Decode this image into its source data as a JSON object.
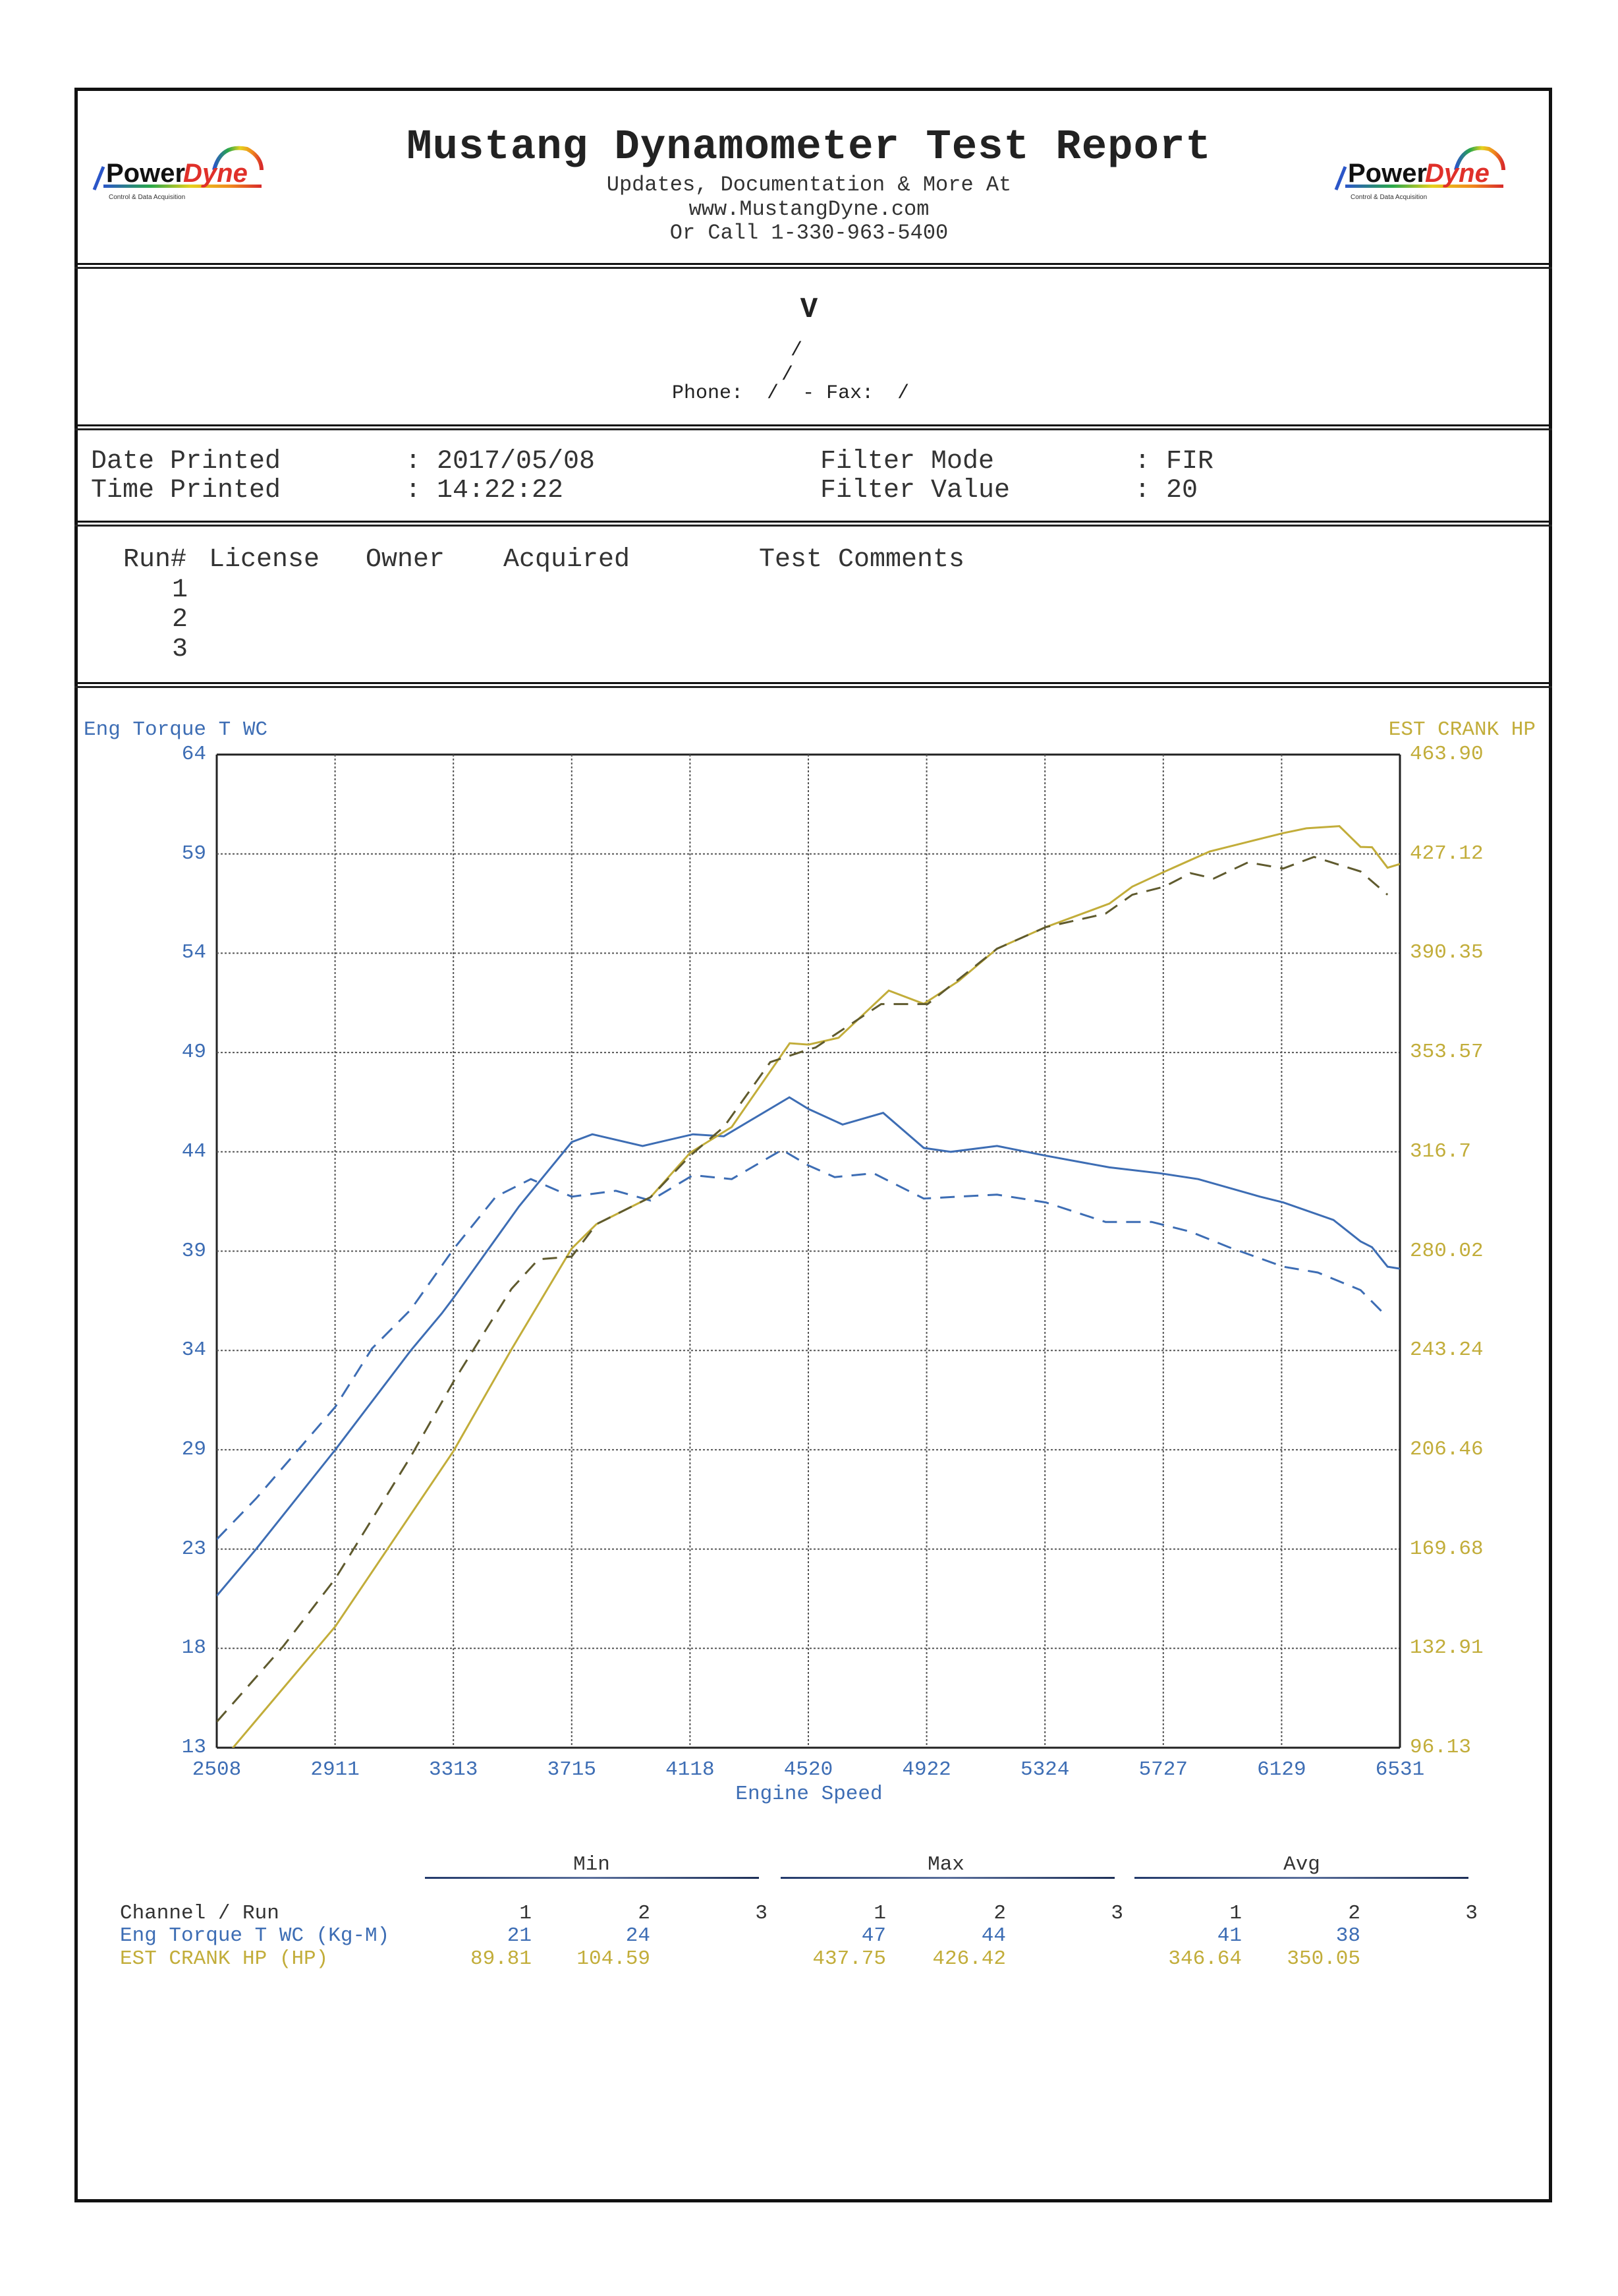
{
  "header": {
    "title": "Mustang Dynamometer Test Report",
    "lines": [
      "Updates, Documentation & More At",
      "www.MustangDyne.com",
      "Or Call 1-330-963-5400"
    ],
    "logo": {
      "brand_a": "Power",
      "brand_b": "Dyne",
      "tagline": "Control & Data Acquisition"
    }
  },
  "customer": {
    "name": "V",
    "line1": "/",
    "line2": "/",
    "phone_label": "Phone:",
    "phone": "/",
    "fax_label": "- Fax:",
    "fax": "/"
  },
  "info": {
    "date_label": "Date Printed",
    "date_value": ": 2017/05/08",
    "time_label": "Time Printed",
    "time_value": ": 14:22:22",
    "filter_mode_label": "Filter Mode",
    "filter_mode_value": ": FIR",
    "filter_value_label": "Filter Value",
    "filter_value_value": ": 20"
  },
  "runs": {
    "headers": [
      "Run#",
      "License",
      "Owner",
      "Acquired",
      "Test Comments"
    ],
    "rows": [
      "1",
      "2",
      "3"
    ]
  },
  "colors": {
    "torque": "#3d6db4",
    "hp": "#c2ad3a",
    "hp_dash": "#5f5a2e",
    "grid": "#444444"
  },
  "chart_data": {
    "type": "line",
    "xlabel": "Engine Speed",
    "ylabel": "Eng Torque T WC",
    "y2label": "EST CRANK HP",
    "xlim": [
      2508,
      6531
    ],
    "ylim": [
      13,
      64
    ],
    "y2lim": [
      96.13,
      463.9
    ],
    "grid": true,
    "xticks": [
      "2508",
      "2911",
      "3313",
      "3715",
      "4118",
      "4520",
      "4922",
      "5324",
      "5727",
      "6129",
      "6531"
    ],
    "yticks": [
      "64",
      "59",
      "54",
      "49",
      "44",
      "39",
      "34",
      "29",
      "23",
      "18",
      "13"
    ],
    "y2ticks": [
      "463.90",
      "427.12",
      "390.35",
      "353.57",
      "316.7",
      "280.02",
      "243.24",
      "206.46",
      "169.68",
      "132.91",
      "96.13"
    ],
    "series": [
      {
        "name": "Eng Torque T WC Run 1",
        "axis": "left",
        "style": "solid",
        "color": "#3d6db4",
        "x": [
          2508,
          2642,
          2911,
          3168,
          3273,
          3313,
          3536,
          3715,
          3785,
          3956,
          4127,
          4232,
          4455,
          4520,
          4636,
          4774,
          4912,
          5004,
          5161,
          5327,
          5543,
          5714,
          5845,
          6055,
          6134,
          6305,
          6397,
          6436,
          6489,
          6531
        ],
        "y": [
          20.8,
          23.2,
          28.3,
          33.4,
          35.3,
          36.1,
          40.8,
          44.1,
          44.5,
          43.9,
          44.5,
          44.4,
          46.4,
          45.8,
          45.0,
          45.6,
          43.8,
          43.6,
          43.9,
          43.4,
          42.8,
          42.5,
          42.2,
          41.3,
          41.0,
          40.1,
          39.0,
          38.7,
          37.7,
          37.6
        ]
      },
      {
        "name": "Eng Torque T WC Run 2",
        "axis": "left",
        "style": "dashed",
        "color": "#3d6db4",
        "x": [
          2508,
          2642,
          2911,
          3036,
          3168,
          3313,
          3457,
          3576,
          3715,
          3865,
          3983,
          4127,
          4259,
          4430,
          4520,
          4609,
          4741,
          4912,
          5030,
          5161,
          5327,
          5530,
          5687,
          5819,
          5950,
          6134,
          6252,
          6397,
          6476
        ],
        "y": [
          23.7,
          25.8,
          30.5,
          33.5,
          35.5,
          38.6,
          41.3,
          42.2,
          41.3,
          41.6,
          41.1,
          42.4,
          42.2,
          43.7,
          42.9,
          42.3,
          42.5,
          41.2,
          41.3,
          41.4,
          41.0,
          40.0,
          40.0,
          39.5,
          38.7,
          37.7,
          37.4,
          36.5,
          35.3
        ]
      },
      {
        "name": "EST CRANK HP Run 1",
        "axis": "right",
        "style": "solid",
        "color": "#c2ad3a",
        "x": [
          2508,
          2563,
          2911,
          3313,
          3510,
          3715,
          3799,
          3983,
          4118,
          4259,
          4456,
          4520,
          4622,
          4793,
          4912,
          5030,
          5161,
          5327,
          5543,
          5621,
          5730,
          5884,
          6015,
          6134,
          6213,
          6325,
          6397,
          6436,
          6489,
          6531
        ],
        "y": [
          89.81,
          96.1,
          141,
          206,
          243.6,
          281,
          290,
          300,
          316.5,
          326,
          357,
          356.5,
          359,
          376.5,
          371.6,
          380,
          392,
          400,
          408.7,
          415,
          420.5,
          428,
          431.6,
          434.8,
          436.6,
          437.4,
          429.7,
          429.6,
          422,
          423.4
        ]
      },
      {
        "name": "EST CRANK HP Run 2",
        "axis": "right",
        "style": "dashed",
        "color": "#5f5a2e",
        "x": [
          2508,
          2734,
          2911,
          3168,
          3313,
          3510,
          3602,
          3715,
          3799,
          3983,
          4118,
          4232,
          4390,
          4520,
          4544,
          4767,
          4925,
          5161,
          5327,
          5530,
          5621,
          5730,
          5819,
          5898,
          6015,
          6134,
          6239,
          6397,
          6489
        ],
        "y": [
          105.7,
          133.7,
          158.7,
          204,
          231.7,
          266,
          277,
          278,
          290,
          300,
          315.4,
          326,
          350,
          354.7,
          355.4,
          371.5,
          371.5,
          392,
          400,
          405,
          412,
          415,
          420,
          418,
          424,
          421.7,
          426,
          420.6,
          412
        ]
      }
    ]
  },
  "stats": {
    "groups": [
      "Min",
      "Max",
      "Avg"
    ],
    "channel_label": "Channel / Run",
    "run_numbers": [
      "1",
      "2",
      "3",
      "1",
      "2",
      "3",
      "1",
      "2",
      "3"
    ],
    "rows": [
      {
        "label": "Eng Torque T WC (Kg-M)",
        "values": [
          "21",
          "24",
          "",
          "47",
          "44",
          "",
          "41",
          "38",
          ""
        ]
      },
      {
        "label": "EST CRANK HP (HP)",
        "values": [
          "89.81",
          "104.59",
          "",
          "437.75",
          "426.42",
          "",
          "346.64",
          "350.05",
          ""
        ]
      }
    ]
  }
}
